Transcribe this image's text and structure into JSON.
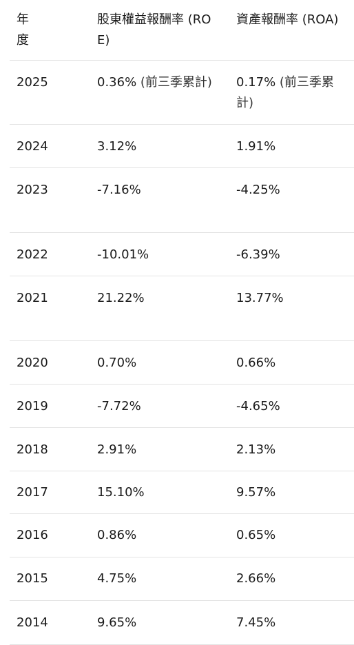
{
  "header": {
    "year": "年度",
    "roe": "股東權益報酬率 (ROE)",
    "roa": "資產報酬率 (ROA)"
  },
  "rows": [
    {
      "year": "2025",
      "roe": "0.36%",
      "roe_note": " (前三季累計)",
      "roa": "0.17%",
      "roa_note": " (前三季累計)"
    },
    {
      "year": "2024",
      "roe": "3.12%",
      "roa": "1.91%"
    },
    {
      "year": "2023",
      "roe": "-7.16%",
      "roa": "-4.25%"
    },
    {
      "year": "2022",
      "roe": "-10.01%",
      "roa": "-6.39%"
    },
    {
      "year": "2021",
      "roe": "21.22%",
      "roa": "13.77%"
    },
    {
      "year": "2020",
      "roe": "0.70%",
      "roa": "0.66%"
    },
    {
      "year": "2019",
      "roe": "-7.72%",
      "roa": "-4.65%"
    },
    {
      "year": "2018",
      "roe": "2.91%",
      "roa": "2.13%"
    },
    {
      "year": "2017",
      "roe": "15.10%",
      "roa": "9.57%"
    },
    {
      "year": "2016",
      "roe": "0.86%",
      "roa": "0.65%"
    },
    {
      "year": "2015",
      "roe": "4.75%",
      "roa": "2.66%"
    },
    {
      "year": "2014",
      "roe": "9.65%",
      "roa": "7.45%"
    }
  ]
}
